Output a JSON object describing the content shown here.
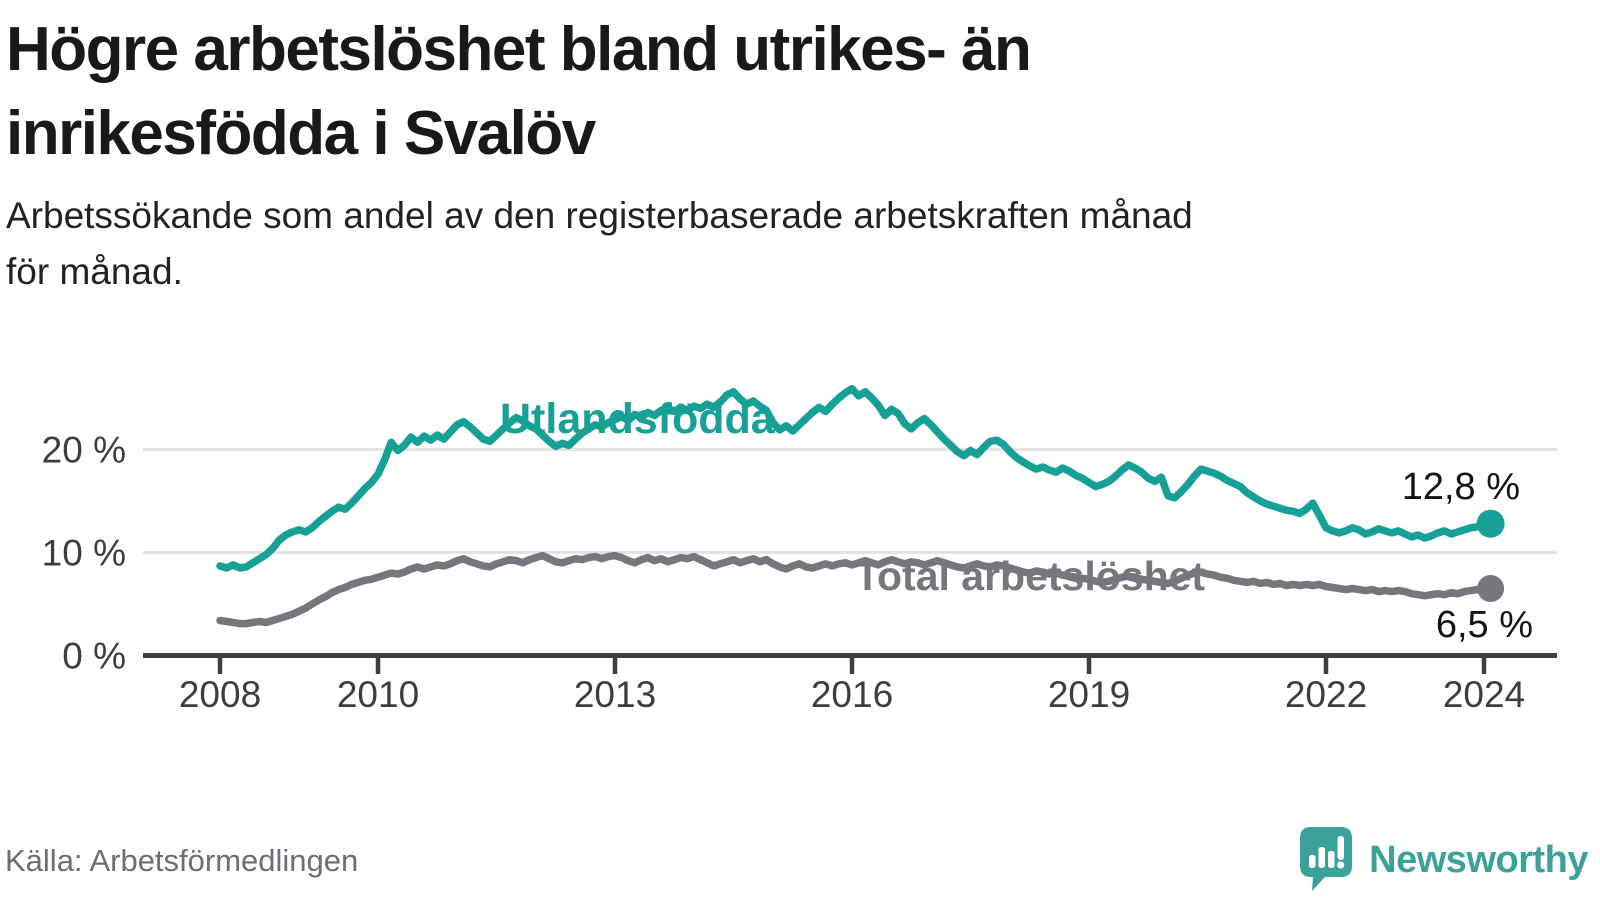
{
  "header": {
    "title": "Högre arbetslöshet bland utrikes- än\ninrikesfödda i Svalöv",
    "subtitle": "Arbetssökande som andel av den registerbaserade arbetskraften månad\nför månad."
  },
  "footer": {
    "source": "Källa: Arbetsförmedlingen",
    "brand": "Newsworthy",
    "brand_color": "#3ba29b"
  },
  "chart_data": {
    "type": "line",
    "title": "Högre arbetslöshet bland utrikes- än inrikesfödda i Svalöv",
    "subtitle": "Arbetssökande som andel av den registerbaserade arbetskraften månad för månad.",
    "x_unit": "month",
    "x_start_year": 2008.0,
    "x_end_year": 2024.083,
    "x_ticks": [
      "2008",
      "2010",
      "2013",
      "2016",
      "2019",
      "2022",
      "2024"
    ],
    "y_ticks": [
      "0 %",
      "10 %",
      "20 %"
    ],
    "ylim": [
      0,
      27
    ],
    "grid": "horizontal-light",
    "legend_position": "inline-labels",
    "series": [
      {
        "name": "Utlandsfödda",
        "color": "#17a096",
        "end_value": 12.8,
        "end_label": "12,8 %",
        "values": [
          8.7,
          8.5,
          8.8,
          8.5,
          8.6,
          9.0,
          9.4,
          9.8,
          10.4,
          11.2,
          11.7,
          12.0,
          12.2,
          12.0,
          12.4,
          13.0,
          13.5,
          14.0,
          14.4,
          14.2,
          14.8,
          15.5,
          16.2,
          16.8,
          17.6,
          19.0,
          20.7,
          19.9,
          20.4,
          21.2,
          20.7,
          21.3,
          20.9,
          21.4,
          21.0,
          21.7,
          22.4,
          22.7,
          22.2,
          21.6,
          21.0,
          20.8,
          21.4,
          22.0,
          22.6,
          23.1,
          22.8,
          22.3,
          22.0,
          21.4,
          20.8,
          20.3,
          20.6,
          20.4,
          21.0,
          21.6,
          22.0,
          22.4,
          22.2,
          22.6,
          22.9,
          23.2,
          22.8,
          23.4,
          23.1,
          23.6,
          23.3,
          23.8,
          24.0,
          23.7,
          24.1,
          23.8,
          24.2,
          24.0,
          24.4,
          24.1,
          24.6,
          25.3,
          25.6,
          24.9,
          24.4,
          24.7,
          24.2,
          23.8,
          22.6,
          21.9,
          22.3,
          21.8,
          22.4,
          23.0,
          23.6,
          24.1,
          23.7,
          24.4,
          25.0,
          25.5,
          25.9,
          25.2,
          25.6,
          25.0,
          24.3,
          23.3,
          23.9,
          23.5,
          22.5,
          22.0,
          22.6,
          23.0,
          22.4,
          21.7,
          21.0,
          20.4,
          19.8,
          19.4,
          19.9,
          19.5,
          20.2,
          20.8,
          20.9,
          20.5,
          19.8,
          19.2,
          18.8,
          18.4,
          18.1,
          18.3,
          18.0,
          17.8,
          18.2,
          17.9,
          17.5,
          17.2,
          16.8,
          16.4,
          16.6,
          16.9,
          17.4,
          18.0,
          18.5,
          18.2,
          17.8,
          17.2,
          16.9,
          17.3,
          15.5,
          15.3,
          15.9,
          16.6,
          17.4,
          18.1,
          17.9,
          17.7,
          17.4,
          17.0,
          16.7,
          16.4,
          15.8,
          15.4,
          15.0,
          14.7,
          14.5,
          14.3,
          14.1,
          14.0,
          13.8,
          14.2,
          14.8,
          13.6,
          12.4,
          12.1,
          11.9,
          12.1,
          12.4,
          12.2,
          11.8,
          12.0,
          12.3,
          12.1,
          11.9,
          12.1,
          11.8,
          11.5,
          11.7,
          11.4,
          11.6,
          11.9,
          12.1,
          11.8,
          12.0,
          12.2,
          12.4,
          12.5,
          12.6,
          12.8
        ]
      },
      {
        "name": "Total arbetslöshet",
        "color": "#76767c",
        "end_value": 6.5,
        "end_label": "6,5 %",
        "values": [
          3.4,
          3.3,
          3.2,
          3.1,
          3.1,
          3.2,
          3.3,
          3.2,
          3.4,
          3.6,
          3.8,
          4.0,
          4.3,
          4.6,
          5.0,
          5.4,
          5.7,
          6.1,
          6.4,
          6.6,
          6.9,
          7.1,
          7.3,
          7.4,
          7.6,
          7.8,
          8.0,
          7.9,
          8.1,
          8.4,
          8.6,
          8.4,
          8.6,
          8.8,
          8.7,
          8.9,
          9.2,
          9.4,
          9.1,
          8.9,
          8.7,
          8.6,
          8.9,
          9.1,
          9.3,
          9.2,
          9.0,
          9.3,
          9.5,
          9.7,
          9.4,
          9.1,
          9.0,
          9.2,
          9.4,
          9.3,
          9.5,
          9.6,
          9.4,
          9.6,
          9.7,
          9.5,
          9.2,
          9.0,
          9.3,
          9.5,
          9.2,
          9.4,
          9.1,
          9.3,
          9.5,
          9.4,
          9.6,
          9.3,
          9.0,
          8.7,
          8.9,
          9.1,
          9.3,
          9.0,
          9.2,
          9.4,
          9.1,
          9.3,
          8.9,
          8.6,
          8.4,
          8.7,
          8.9,
          8.6,
          8.5,
          8.7,
          8.9,
          8.7,
          8.9,
          9.0,
          8.8,
          9.0,
          9.2,
          9.0,
          8.8,
          9.1,
          9.3,
          9.1,
          8.9,
          9.1,
          9.0,
          8.8,
          9.0,
          9.2,
          9.0,
          8.8,
          8.6,
          8.5,
          8.7,
          8.9,
          8.7,
          8.6,
          8.8,
          8.7,
          8.5,
          8.3,
          8.1,
          8.0,
          8.2,
          8.1,
          7.9,
          8.0,
          7.8,
          7.7,
          7.6,
          7.5,
          7.4,
          7.2,
          7.1,
          7.2,
          7.4,
          7.6,
          7.7,
          7.6,
          7.4,
          7.3,
          7.2,
          7.1,
          7.0,
          7.2,
          7.5,
          7.8,
          8.0,
          8.1,
          7.9,
          7.8,
          7.6,
          7.5,
          7.3,
          7.2,
          7.1,
          7.2,
          7.0,
          7.1,
          6.9,
          7.0,
          6.8,
          6.9,
          6.8,
          6.9,
          6.8,
          6.9,
          6.7,
          6.6,
          6.5,
          6.4,
          6.5,
          6.4,
          6.3,
          6.4,
          6.2,
          6.3,
          6.2,
          6.3,
          6.2,
          6.0,
          5.9,
          5.8,
          5.9,
          6.0,
          5.9,
          6.1,
          6.0,
          6.2,
          6.3,
          6.4,
          6.4,
          6.5
        ]
      }
    ],
    "colors": {
      "axis": "#3f3f3f",
      "gridline": "#e3e3e3",
      "title_text": "#191919",
      "value_label_text": "#141414"
    }
  }
}
